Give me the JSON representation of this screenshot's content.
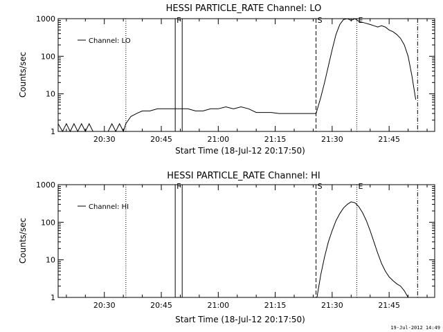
{
  "footer": {
    "timestamp": "19-Jul-2012 14:49"
  },
  "chart_data": [
    {
      "type": "line",
      "title": "HESSI PARTICLE_RATE Channel: LO",
      "xlabel": "Start Time (18-Jul-12 20:17:50)",
      "ylabel": "Counts/sec",
      "yscale": "log",
      "xlim": [
        "20:17:50",
        "21:57:00"
      ],
      "ylim": [
        1,
        1000
      ],
      "xticks": [
        "20:30",
        "20:45",
        "21:00",
        "21:15",
        "21:30",
        "21:45"
      ],
      "yticks": [
        "1",
        "10",
        "100",
        "1000"
      ],
      "legend": {
        "position": "top-left",
        "label": "Channel: LO"
      },
      "markers": [
        {
          "label": "F",
          "x": "20:48:40",
          "style": "solid"
        },
        {
          "label": "",
          "x": "20:50:30",
          "style": "solid"
        },
        {
          "label": "",
          "x": "20:35:40",
          "style": "dotted"
        },
        {
          "label": "S",
          "x": "21:25:45",
          "style": "dashed"
        },
        {
          "label": "E",
          "x": "21:36:30",
          "style": "dotted"
        },
        {
          "label": "",
          "x": "21:52:30",
          "style": "dashdot"
        }
      ],
      "series": [
        {
          "x": [
            "20:17:50",
            "20:19:00",
            "20:20:00",
            "20:21:00",
            "20:22:00",
            "20:23:00",
            "20:24:00",
            "20:25:00",
            "20:26:00",
            "20:27:00",
            "20:28:00",
            "20:29:00",
            "20:30:00",
            "20:31:00",
            "20:32:00",
            "20:33:00",
            "20:34:00",
            "20:35:00",
            "20:35:40",
            "20:37:00",
            "20:38:30",
            "20:40:00",
            "20:42:00",
            "20:44:00",
            "20:46:00",
            "20:48:00",
            "20:50:00",
            "20:52:00",
            "20:54:00",
            "20:56:00",
            "20:58:00",
            "21:00:00",
            "21:02:00",
            "21:04:00",
            "21:06:00",
            "21:08:00",
            "21:10:00",
            "21:12:00",
            "21:14:00",
            "21:16:00",
            "21:18:00",
            "21:20:00",
            "21:22:00",
            "21:24:00",
            "21:25:45",
            "21:27:00",
            "21:28:00",
            "21:29:00",
            "21:30:00",
            "21:31:00",
            "21:32:00",
            "21:33:00",
            "21:34:00",
            "21:35:00",
            "21:36:00",
            "21:37:00",
            "21:38:00",
            "21:39:00",
            "21:40:00",
            "21:41:00",
            "21:42:00",
            "21:43:00",
            "21:44:00",
            "21:45:00",
            "21:46:00",
            "21:47:00",
            "21:48:00",
            "21:49:00",
            "21:50:00",
            "21:51:00",
            "21:52:00"
          ],
          "y": [
            1.6,
            1,
            1.6,
            1,
            1.6,
            1,
            1.6,
            1,
            1.6,
            1,
            1,
            1,
            1,
            1,
            1.6,
            1,
            1.6,
            1,
            1.6,
            2.5,
            3,
            3.5,
            3.5,
            4,
            4,
            4,
            4,
            4,
            3.5,
            3.5,
            4,
            4,
            4.5,
            4,
            4.5,
            4,
            3.2,
            3.2,
            3.2,
            3,
            3,
            3,
            3,
            3,
            3,
            8,
            20,
            55,
            150,
            380,
            700,
            950,
            1000,
            900,
            1000,
            850,
            800,
            750,
            700,
            650,
            600,
            650,
            600,
            500,
            450,
            380,
            300,
            200,
            100,
            30,
            7
          ]
        }
      ]
    },
    {
      "type": "line",
      "title": "HESSI PARTICLE_RATE Channel: HI",
      "xlabel": "Start Time (18-Jul-12 20:17:50)",
      "ylabel": "Counts/sec",
      "yscale": "log",
      "xlim": [
        "20:17:50",
        "21:57:00"
      ],
      "ylim": [
        1,
        1000
      ],
      "xticks": [
        "20:30",
        "20:45",
        "21:00",
        "21:15",
        "21:30",
        "21:45"
      ],
      "yticks": [
        "1",
        "10",
        "100",
        "1000"
      ],
      "legend": {
        "position": "top-left",
        "label": "Channel: HI"
      },
      "markers": [
        {
          "label": "F",
          "x": "20:48:40",
          "style": "solid"
        },
        {
          "label": "",
          "x": "20:50:30",
          "style": "solid"
        },
        {
          "label": "",
          "x": "20:35:40",
          "style": "dotted"
        },
        {
          "label": "S",
          "x": "21:25:45",
          "style": "dashed"
        },
        {
          "label": "E",
          "x": "21:36:30",
          "style": "dotted"
        },
        {
          "label": "",
          "x": "21:52:30",
          "style": "dashdot"
        }
      ],
      "series": [
        {
          "x": [
            "21:26:00",
            "21:27:00",
            "21:28:00",
            "21:29:00",
            "21:30:00",
            "21:31:00",
            "21:32:00",
            "21:33:00",
            "21:34:00",
            "21:35:00",
            "21:36:00",
            "21:37:00",
            "21:38:00",
            "21:39:00",
            "21:40:00",
            "21:41:00",
            "21:42:00",
            "21:43:00",
            "21:44:00",
            "21:45:00",
            "21:46:00",
            "21:47:00",
            "21:48:00",
            "21:49:00",
            "21:50:00"
          ],
          "y": [
            1,
            4,
            12,
            30,
            60,
            110,
            170,
            240,
            300,
            350,
            330,
            260,
            180,
            110,
            60,
            30,
            15,
            8,
            5,
            3.5,
            2.8,
            2.3,
            2.0,
            1.5,
            1
          ]
        }
      ]
    }
  ]
}
